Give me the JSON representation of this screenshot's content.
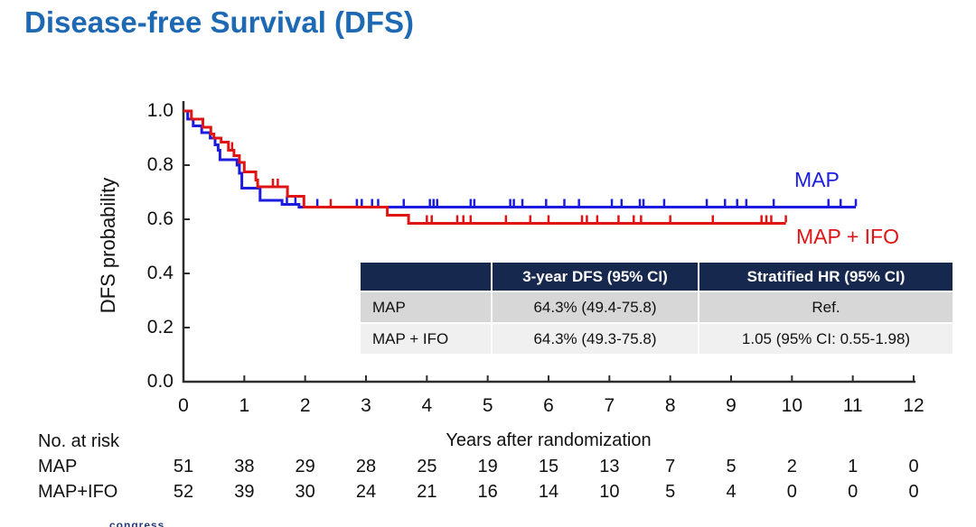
{
  "title": "Disease-free Survival (DFS)",
  "colors": {
    "title_blue": "#1e69b4",
    "map_blue": "#1c1cdf",
    "map_ifo_red": "#df1414",
    "table_header_bg": "#16284e",
    "table_row1_bg": "#d7d7d7",
    "table_row2_bg": "#f0f0f0",
    "axis": "#2d2d2d"
  },
  "chart_data": {
    "type": "line",
    "subtype": "kaplan-meier-step",
    "title": "",
    "xlabel": "Years after randomization",
    "ylabel": "DFS probability",
    "xlim": [
      0,
      12
    ],
    "ylim": [
      0.0,
      1.0
    ],
    "grid": false,
    "legend_position": "labels-at-line-end",
    "x_ticks": [
      "0",
      "1",
      "2",
      "3",
      "4",
      "5",
      "6",
      "7",
      "8",
      "9",
      "10",
      "11",
      "12"
    ],
    "y_ticks": [
      "0.0",
      "0.2",
      "0.4",
      "0.6",
      "0.8",
      "1.0"
    ],
    "series": [
      {
        "name": "MAP",
        "color": "#1c1cdf",
        "steps": [
          [
            0,
            1.0
          ],
          [
            0.07,
            0.97
          ],
          [
            0.16,
            0.945
          ],
          [
            0.3,
            0.92
          ],
          [
            0.44,
            0.9
          ],
          [
            0.52,
            0.875
          ],
          [
            0.57,
            0.855
          ],
          [
            0.6,
            0.82
          ],
          [
            0.88,
            0.8
          ],
          [
            0.92,
            0.77
          ],
          [
            0.96,
            0.715
          ],
          [
            1.26,
            0.67
          ],
          [
            1.62,
            0.655
          ],
          [
            1.9,
            0.645
          ]
        ],
        "end_year": 11.05,
        "censor_years": [
          1.7,
          1.84,
          2.2,
          2.85,
          2.93,
          3.1,
          3.2,
          3.62,
          4.05,
          4.11,
          4.17,
          4.72,
          4.78,
          5.37,
          5.43,
          5.57,
          5.96,
          6.26,
          6.5,
          7.04,
          7.2,
          7.5,
          7.56,
          7.9,
          8.6,
          8.9,
          9.1,
          9.25,
          9.7,
          10.6,
          10.8,
          11.05
        ]
      },
      {
        "name": "MAP + IFO",
        "color": "#df1414",
        "steps": [
          [
            0,
            1.0
          ],
          [
            0.13,
            0.97
          ],
          [
            0.32,
            0.94
          ],
          [
            0.45,
            0.915
          ],
          [
            0.5,
            0.9
          ],
          [
            0.62,
            0.885
          ],
          [
            0.74,
            0.855
          ],
          [
            0.83,
            0.835
          ],
          [
            0.92,
            0.81
          ],
          [
            1.0,
            0.775
          ],
          [
            1.19,
            0.745
          ],
          [
            1.22,
            0.72
          ],
          [
            1.71,
            0.685
          ],
          [
            1.98,
            0.645
          ],
          [
            3.35,
            0.615
          ],
          [
            3.7,
            0.585
          ]
        ],
        "end_year": 9.9,
        "censor_years": [
          0.8,
          1.47,
          1.55,
          2.42,
          4.0,
          4.08,
          4.5,
          4.6,
          4.72,
          5.3,
          5.7,
          6.0,
          6.55,
          6.63,
          6.8,
          7.15,
          7.4,
          7.52,
          8.0,
          8.7,
          9.5,
          9.58,
          9.66,
          9.9
        ]
      }
    ]
  },
  "results_table": {
    "header": [
      "",
      "3-year DFS (95% CI)",
      "Stratified HR (95% CI)"
    ],
    "rows": [
      [
        "MAP",
        "64.3% (49.4-75.8)",
        "Ref."
      ],
      [
        "MAP + IFO",
        "64.3% (49.3-75.8)",
        "1.05 (95% CI: 0.55-1.98)"
      ]
    ]
  },
  "risk_table": {
    "title": "No. at risk",
    "rows": [
      {
        "label": "MAP",
        "values": [
          "51",
          "38",
          "29",
          "28",
          "25",
          "19",
          "15",
          "13",
          "7",
          "5",
          "2",
          "1",
          "0"
        ]
      },
      {
        "label": "MAP+IFO",
        "values": [
          "52",
          "39",
          "30",
          "24",
          "21",
          "16",
          "14",
          "10",
          "5",
          "4",
          "0",
          "0",
          "0"
        ]
      }
    ]
  },
  "watermark": "congress"
}
